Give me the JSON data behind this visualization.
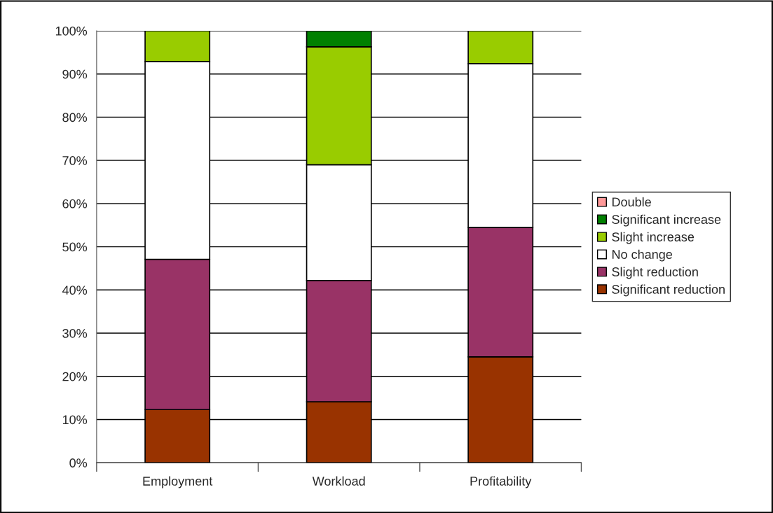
{
  "chart_data": {
    "type": "bar",
    "stacked": true,
    "categories": [
      "Employment",
      "Workload",
      "Profitability"
    ],
    "series": [
      {
        "name": "Significant reduction",
        "color": "#993300",
        "values": [
          12.3,
          14.1,
          24.5
        ]
      },
      {
        "name": "Slight reduction",
        "color": "#993366",
        "values": [
          34.8,
          28.1,
          30.0
        ]
      },
      {
        "name": "No change",
        "color": "#ffffff",
        "values": [
          45.8,
          26.8,
          37.9
        ]
      },
      {
        "name": "Slight increase",
        "color": "#99cc00",
        "values": [
          7.1,
          27.3,
          7.6
        ]
      },
      {
        "name": "Significant increase",
        "color": "#008000",
        "values": [
          0,
          3.7,
          0
        ]
      },
      {
        "name": "Double",
        "color": "#ff9999",
        "values": [
          0,
          0,
          0
        ]
      }
    ],
    "ylim": [
      0,
      100
    ],
    "yticks": [
      {
        "value": 0,
        "label": "0%"
      },
      {
        "value": 10,
        "label": "10%"
      },
      {
        "value": 20,
        "label": "20%"
      },
      {
        "value": 30,
        "label": "30%"
      },
      {
        "value": 40,
        "label": "40%"
      },
      {
        "value": 50,
        "label": "50%"
      },
      {
        "value": 60,
        "label": "60%"
      },
      {
        "value": 70,
        "label": "70%"
      },
      {
        "value": 80,
        "label": "80%"
      },
      {
        "value": 90,
        "label": "90%"
      },
      {
        "value": 100,
        "label": "100%"
      }
    ],
    "grid": "y",
    "legend": "right"
  }
}
